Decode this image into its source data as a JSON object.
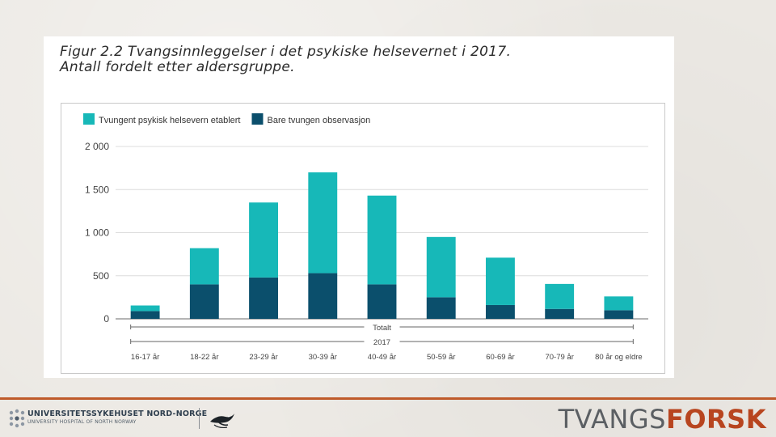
{
  "figure": {
    "title_line1": "Figur 2.2 Tvangsinnleggelser i det psykiske helsevernet i 2017.",
    "title_line2": "Antall fordelt etter aldersgruppe."
  },
  "chart_data": {
    "type": "bar",
    "stacked": true,
    "categories": [
      "16-17 år",
      "18-22 år",
      "23-29 år",
      "30-39 år",
      "40-49 år",
      "50-59 år",
      "60-69 år",
      "70-79 år",
      "80 år og eldre"
    ],
    "series": [
      {
        "name": "Bare tvungen observasjon",
        "color": "#0b4f6c",
        "values": [
          90,
          400,
          480,
          530,
          400,
          250,
          160,
          115,
          100
        ]
      },
      {
        "name": "Tvungent psykisk helsevern etablert",
        "color": "#17b8b8",
        "values": [
          65,
          420,
          870,
          1170,
          1030,
          700,
          550,
          290,
          160
        ]
      }
    ],
    "legend_order": [
      "Tvungent psykisk helsevern etablert",
      "Bare tvungen observasjon"
    ],
    "legend_position": "top-left",
    "yticks": [
      0,
      500,
      1000,
      1500,
      2000
    ],
    "ytick_labels": [
      "0",
      "500",
      "1 000",
      "1 500",
      "2 000"
    ],
    "ylim": [
      0,
      2000
    ],
    "grid": "horizontal",
    "bracket_labels": [
      "Totalt",
      "2017"
    ],
    "title": "",
    "xlabel": "",
    "ylabel": ""
  },
  "footer": {
    "org_name": "UNIVERSITETSSYKEHUSET NORD-NORGE",
    "org_sub": "UNIVERSITY HOSPITAL OF NORTH NORWAY",
    "brand_part1": "TVANGS",
    "brand_part2": "FORSK",
    "accent_color": "#bf5a2a",
    "logo_icons": [
      "unn-logo-icon",
      "bird-logo-icon"
    ]
  }
}
